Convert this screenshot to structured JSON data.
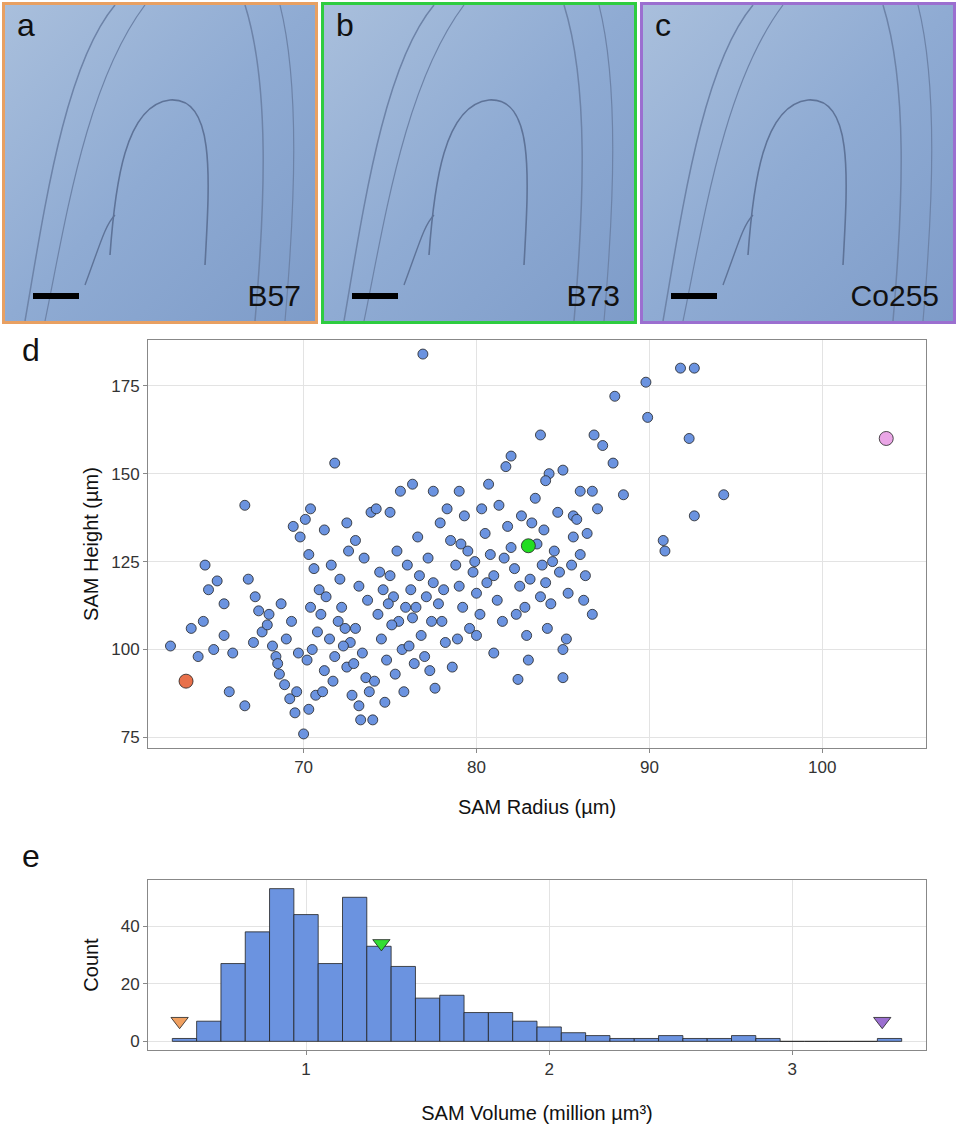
{
  "panels": [
    {
      "letter": "a",
      "label": "B57",
      "color": "#e8a062"
    },
    {
      "letter": "b",
      "label": "B73",
      "color": "#2ecc40"
    },
    {
      "letter": "c",
      "label": "Co255",
      "color": "#9b6fd0"
    }
  ],
  "chart_data": [
    {
      "letter": "d",
      "type": "scatter",
      "x_label": "SAM Radius (µm)",
      "y_label": "SAM Height (µm)",
      "xlim": [
        61,
        106
      ],
      "ylim": [
        72,
        188
      ],
      "xticks": [
        70,
        80,
        90,
        100
      ],
      "yticks": [
        75,
        100,
        125,
        150,
        175
      ],
      "grid": true,
      "series": [
        {
          "color": "#6b93e0",
          "marker": "circle",
          "x": [
            76.9,
            91.8,
            92.6,
            89.8,
            88,
            89.9,
            92.3,
            83.7,
            86.8,
            87.3,
            82,
            71.8,
            81.7,
            85,
            84.2,
            87.9,
            88.5,
            94.3,
            92.6,
            90.8,
            90.9,
            86.7,
            86,
            85.6,
            84,
            83.4,
            80.7,
            79,
            77.5,
            76.3,
            75.6,
            73.9,
            74.2,
            75,
            66.6,
            70.4,
            70.1,
            72.5,
            71.2,
            69.4,
            69.8,
            73,
            62.3,
            64.3,
            64.5,
            65,
            65.4,
            65.4,
            63.5,
            64.2,
            63.9,
            64.8,
            65.9,
            65.7,
            66.6,
            66.8,
            67.2,
            67.6,
            67.9,
            68.4,
            68.5,
            68.6,
            68.9,
            69.2,
            69.5,
            69.6,
            70,
            70.3,
            70.7,
            70.2,
            69,
            68,
            70.5,
            70.8,
            71,
            71.3,
            71.5,
            71.8,
            72,
            72.2,
            72.5,
            72.7,
            73,
            73.2,
            73.4,
            73.6,
            73.8,
            74,
            73.2,
            72.8,
            74.3,
            74.5,
            74.8,
            75,
            75.2,
            75.5,
            75.7,
            76,
            76.2,
            76.5,
            76.8,
            77,
            77.2,
            77.5,
            77.8,
            78,
            78.2,
            78.5,
            78.8,
            79,
            79.2,
            79.5,
            79.8,
            80,
            80.2,
            80.5,
            80.8,
            81,
            81.2,
            81.5,
            81.8,
            82,
            82.2,
            82.5,
            82.8,
            83.2,
            83.5,
            83.8,
            84,
            84.3,
            84.5,
            84.8,
            85,
            85,
            85.3,
            85.6,
            86,
            86.3,
            86.7,
            87,
            83,
            82.4,
            81,
            80,
            79.6,
            78.6,
            77.6,
            77.3,
            76.4,
            76.1,
            75.8,
            75.3,
            74.7,
            74.1,
            73.3,
            72.9,
            72.3,
            71.7,
            71.2,
            70.9,
            70.6,
            70.3,
            71.6,
            72.1,
            72.6,
            73.5,
            74.4,
            75.4,
            76.6,
            77.9,
            78.3,
            79.3,
            80.3,
            81.3,
            82.6,
            83.9,
            84.7,
            85.8,
            86.4,
            84.1,
            85.2,
            82.9,
            67.1,
            67.4,
            68.2,
            68.7,
            69.3,
            69.7,
            70.4,
            71.1,
            72.4,
            73.7,
            74.6,
            75.9,
            76.7,
            77.4,
            78.1,
            78.9,
            79.9,
            80.6,
            81.6,
            82.3,
            83.1,
            83.7,
            84.4,
            85.5,
            86.2,
            79.1,
            77.1,
            75.1,
            74.9,
            76.3
          ],
          "values": [
            184,
            180,
            180,
            176,
            172,
            166,
            160,
            161,
            161,
            158,
            155,
            153,
            152,
            151,
            150,
            153,
            144,
            144,
            138,
            131,
            128,
            145,
            145,
            138,
            148,
            143,
            147,
            145,
            145,
            147,
            145,
            139,
            140,
            139,
            141,
            140,
            137,
            136,
            134,
            135,
            132,
            131,
            101,
            124,
            117,
            119.5,
            113,
            104,
            106,
            108,
            98,
            100,
            99,
            88,
            84,
            120,
            115,
            105,
            107,
            98,
            96,
            93,
            90,
            86,
            82,
            88,
            76,
            83,
            87,
            97,
            103,
            110,
            100,
            105,
            110,
            115,
            103,
            98,
            108,
            112,
            95,
            102,
            106,
            118,
            99,
            92,
            88,
            80,
            84,
            87,
            110,
            103,
            97,
            121,
            115,
            108,
            100,
            124,
            117,
            112,
            104,
            98,
            126,
            119,
            113,
            108,
            102,
            131,
            124,
            118,
            112,
            128,
            122,
            116,
            110,
            133,
            127,
            121,
            114,
            108,
            135,
            129,
            123,
            118,
            112,
            136,
            130,
            124,
            119,
            113,
            128,
            122,
            100,
            92,
            116,
            132,
            127,
            121,
            110,
            140,
            97,
            91.5,
            99,
            104,
            106,
            95,
            89,
            94,
            96,
            101,
            88,
            93,
            85,
            91,
            80,
            96,
            101,
            91,
            94,
            117,
            123,
            127,
            124,
            120,
            128,
            126,
            122,
            128,
            132,
            136,
            140,
            138,
            140,
            141,
            138,
            134,
            139,
            137,
            133,
            106,
            103,
            104,
            102,
            111,
            101,
            113,
            108,
            99,
            112,
            88,
            106,
            114,
            117,
            112,
            121,
            108,
            117,
            103,
            125,
            119,
            126,
            110,
            120,
            115,
            125,
            124,
            114,
            130,
            115,
            107,
            113,
            109
          ]
        },
        {
          "colors": [
            "#e8704a",
            "#22dd22",
            "#eaa6e6"
          ],
          "marker": "circle",
          "x": [
            63.2,
            83,
            103.7
          ],
          "values": [
            91,
            129.5,
            160
          ]
        }
      ]
    },
    {
      "letter": "e",
      "type": "histogram",
      "x_label": "SAM Volume (million µm³)",
      "y_label": "Count",
      "xlim": [
        0.35,
        3.55
      ],
      "ylim": [
        -3,
        56
      ],
      "xticks": [
        1,
        2,
        3
      ],
      "yticks": [
        0,
        20,
        40
      ],
      "grid": true,
      "color": "#6b93e0",
      "bins": [
        0.45,
        0.55,
        0.65,
        0.75,
        0.85,
        0.95,
        1.05,
        1.15,
        1.25,
        1.35,
        1.45,
        1.55,
        1.65,
        1.75,
        1.85,
        1.95,
        2.05,
        2.15,
        2.25,
        2.35,
        2.45,
        2.55,
        2.65,
        2.75,
        2.85,
        2.95,
        3.05,
        3.15,
        3.25,
        3.35,
        3.45
      ],
      "counts": [
        1,
        7,
        27,
        38,
        53,
        44,
        27,
        50,
        33,
        26,
        15,
        16,
        10,
        10,
        7,
        5,
        3,
        2,
        1,
        1,
        2,
        1,
        1,
        2,
        1,
        0,
        0,
        0,
        0,
        1
      ],
      "markers": {
        "marker": "triangle-down",
        "colors": [
          "#f0a060",
          "#33dd33",
          "#9b6fd0"
        ],
        "x": [
          0.48,
          1.31,
          3.37
        ],
        "values": [
          7,
          34,
          7
        ]
      }
    }
  ]
}
